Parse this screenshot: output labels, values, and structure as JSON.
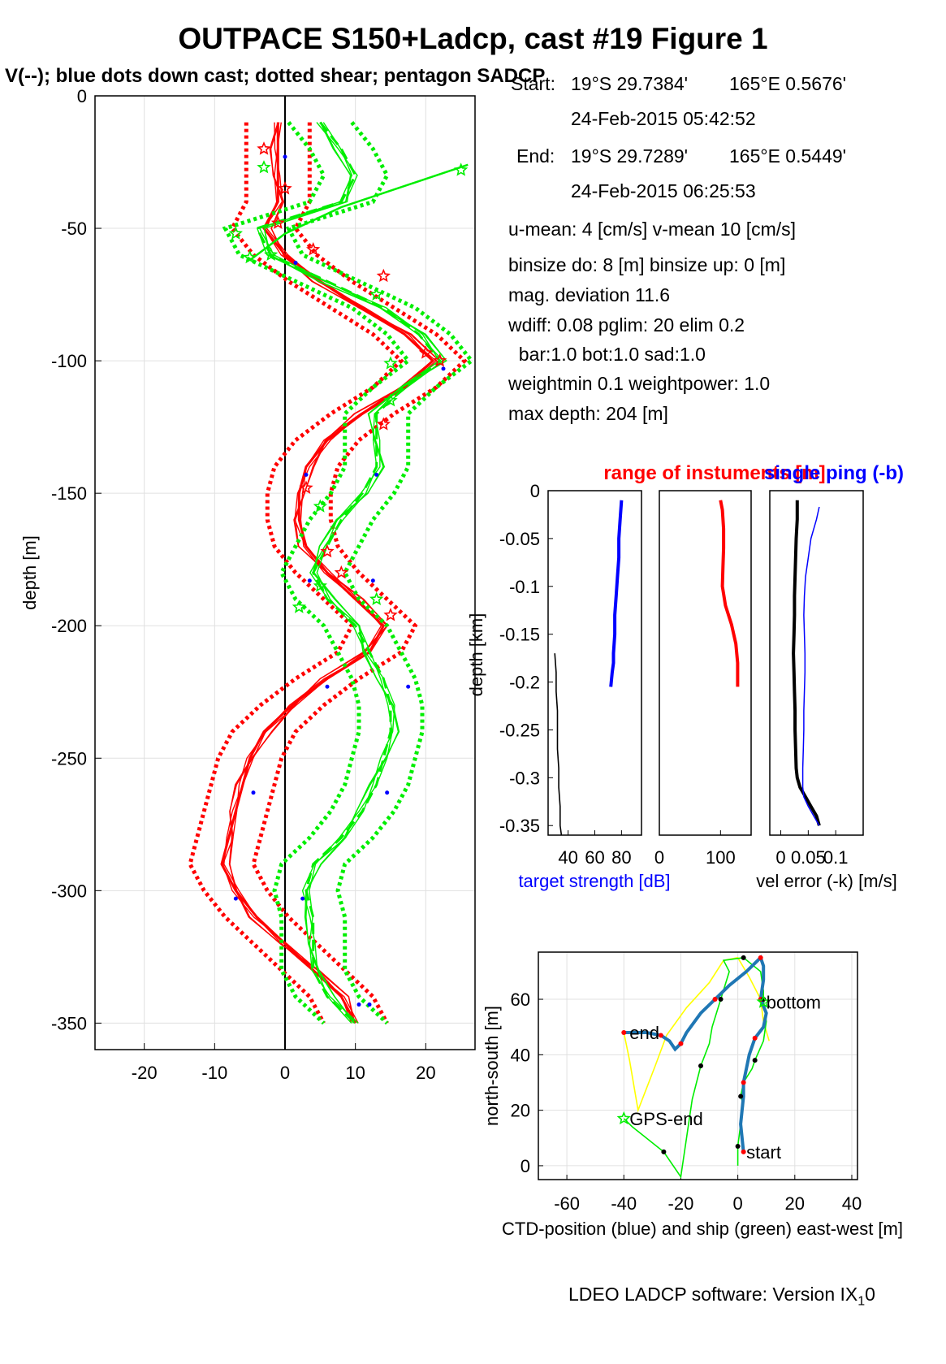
{
  "title": "OUTPACE S150+Ladcp, cast #19  Figure 1",
  "subtitle": "V(--); blue dots down cast; dotted shear; pentagon SADCP",
  "info": {
    "start_label": "Start:",
    "start_lat": "19°S 29.7384'",
    "start_lon": "165°E  0.5676'",
    "start_time": "24-Feb-2015 05:42:52",
    "end_label": "End:",
    "end_lat": "19°S 29.7289'",
    "end_lon": "165°E  0.5449'",
    "end_time": "24-Feb-2015 06:25:53",
    "umean": "u-mean:   4 [cm/s]    v-mean  10 [cm/s]",
    "binsize": "binsize do: 8 [m]  binsize up:  0 [m]",
    "magdev": "mag. deviation 11.6",
    "wdiff": "wdiff: 0.08  pglim: 20  elim 0.2",
    "bar": "  bar:1.0 bot:1.0 sad:1.0",
    "weight": "weightmin 0.1  weightpower: 1.0",
    "maxdepth": "max depth: 204 [m]"
  },
  "footer": "LDEO LADCP software: Version IX",
  "footer_sub": "1",
  "footer_end": "0",
  "colors": {
    "u": "#ff0000",
    "v": "#00ee00",
    "blue": "#0000ff",
    "ctd": "#1f77b4",
    "ship": "#ffff00",
    "black": "#000000"
  },
  "chart_data": [
    {
      "type": "line",
      "ylabel": "depth [m]",
      "xlim": [
        -27,
        27
      ],
      "ylim": [
        -360,
        0
      ],
      "xticks": [
        -20,
        -10,
        0,
        10,
        20
      ],
      "yticks": [
        0,
        -50,
        -100,
        -150,
        -200,
        -250,
        -300,
        -350
      ],
      "grid": true,
      "depth": [
        -10,
        -20,
        -30,
        -40,
        -50,
        -60,
        -70,
        -80,
        -90,
        -100,
        -110,
        -120,
        -130,
        -140,
        -150,
        -160,
        -170,
        -180,
        -190,
        -200,
        -210,
        -220,
        -230,
        -240,
        -250,
        -260,
        -270,
        -280,
        -290,
        -300,
        -310,
        -320,
        -330,
        -340,
        -350
      ],
      "series": [
        {
          "name": "u",
          "color": "#ff0000",
          "values": [
            -1,
            -1,
            -1,
            -1,
            -3,
            0,
            5,
            11,
            17,
            21,
            17,
            11,
            6,
            3,
            2,
            2,
            3,
            6,
            10,
            14,
            12,
            6,
            1,
            -3,
            -5,
            -6,
            -7,
            -8,
            -9,
            -7,
            -4,
            0,
            4,
            8,
            10
          ]
        },
        {
          "name": "v",
          "color": "#00ee00",
          "values": [
            5,
            8,
            10,
            8,
            -4,
            -2,
            6,
            14,
            19,
            22,
            17,
            13,
            13,
            13,
            11,
            8,
            6,
            4,
            6,
            10,
            12,
            14,
            15,
            15,
            14,
            13,
            11,
            8,
            4,
            3,
            4,
            4,
            4,
            6,
            10
          ]
        }
      ],
      "blue_dots": [
        [
          0,
          -23
        ],
        [
          1.5,
          -63
        ],
        [
          22.5,
          -103
        ],
        [
          3,
          -143
        ],
        [
          13,
          -143
        ],
        [
          3.5,
          -183
        ],
        [
          12.5,
          -183
        ],
        [
          6,
          -223
        ],
        [
          17.5,
          -223
        ],
        [
          -4.5,
          -263
        ],
        [
          14.5,
          -263
        ],
        [
          -7,
          -303
        ],
        [
          2.5,
          -303
        ],
        [
          10.5,
          -343
        ],
        [
          12,
          -343
        ]
      ],
      "sadcp_stars": [
        [
          -3,
          -20
        ],
        [
          -3,
          -27
        ],
        [
          0,
          -35
        ],
        [
          -1,
          -48
        ],
        [
          -2,
          -60
        ],
        [
          4,
          -58
        ],
        [
          14,
          -68
        ],
        [
          13,
          -75
        ],
        [
          20,
          -97
        ],
        [
          22,
          -100
        ],
        [
          15,
          -115
        ],
        [
          14,
          -124
        ],
        [
          3,
          -148
        ],
        [
          5,
          -155
        ],
        [
          6,
          -172
        ],
        [
          8,
          -180
        ],
        [
          13,
          -190
        ],
        [
          15,
          -196
        ],
        [
          25,
          -28
        ],
        [
          -7,
          -52
        ],
        [
          -5,
          -61
        ],
        [
          15,
          -101
        ],
        [
          5,
          -185
        ],
        [
          2,
          -193
        ]
      ]
    },
    {
      "type": "line",
      "title": "range of instuments [m]",
      "title2": "single ping (-b)",
      "ylabel": "depth [km]",
      "xlabel": "target strength [dB]",
      "xlabel2": "vel error (-k) [m/s]",
      "ylim": [
        -0.36,
        0
      ],
      "yticks": [
        0,
        -0.05,
        -0.1,
        -0.15,
        -0.2,
        -0.25,
        -0.3,
        -0.35
      ],
      "panels": [
        {
          "xticks": [
            40,
            60,
            80
          ],
          "xlim": [
            25,
            95
          ],
          "series": [
            {
              "color": "#0000ff",
              "x": [
                80,
                79,
                78,
                78,
                77,
                76,
                75,
                75,
                74,
                74,
                73,
                72
              ],
              "y": [
                -0.01,
                -0.03,
                -0.05,
                -0.07,
                -0.09,
                -0.11,
                -0.13,
                -0.15,
                -0.17,
                -0.18,
                -0.19,
                -0.205
              ]
            },
            {
              "color": "#000000",
              "x": [
                30,
                31,
                31,
                32,
                32,
                32,
                33,
                33,
                33,
                34,
                34,
                35
              ],
              "y": [
                -0.17,
                -0.19,
                -0.21,
                -0.23,
                -0.25,
                -0.27,
                -0.29,
                -0.3,
                -0.31,
                -0.33,
                -0.35,
                -0.36
              ]
            }
          ]
        },
        {
          "xticks": [
            0,
            100
          ],
          "xlim": [
            0,
            150
          ],
          "series": [
            {
              "color": "#ff0000",
              "x": [
                100,
                103,
                105,
                105,
                104,
                103,
                108,
                118,
                125,
                128,
                128,
                128
              ],
              "y": [
                -0.01,
                -0.02,
                -0.04,
                -0.06,
                -0.08,
                -0.1,
                -0.12,
                -0.14,
                -0.16,
                -0.18,
                -0.19,
                -0.205
              ]
            }
          ]
        },
        {
          "xticks": [
            0,
            0.05,
            0.1
          ],
          "xticklabels": [
            "0",
            "0.05",
            "0.1"
          ],
          "xlim": [
            -0.02,
            0.15
          ],
          "series": [
            {
              "color": "#000000",
              "x": [
                0.03,
                0.03,
                0.028,
                0.027,
                0.026,
                0.025,
                0.025,
                0.024,
                0.023,
                0.024,
                0.025,
                0.026,
                0.026,
                0.027,
                0.028,
                0.03,
                0.035,
                0.045,
                0.055,
                0.065,
                0.07
              ],
              "y": [
                -0.01,
                -0.03,
                -0.05,
                -0.07,
                -0.09,
                -0.11,
                -0.13,
                -0.15,
                -0.17,
                -0.19,
                -0.21,
                -0.23,
                -0.25,
                -0.27,
                -0.29,
                -0.3,
                -0.31,
                -0.32,
                -0.33,
                -0.34,
                -0.35
              ]
            },
            {
              "color": "#0000ff",
              "x": [
                0.07,
                0.065,
                0.055,
                0.05,
                0.045,
                0.043,
                0.042,
                0.043,
                0.044,
                0.044,
                0.043,
                0.042,
                0.042,
                0.041,
                0.04,
                0.04,
                0.04,
                0.042,
                0.05,
                0.06,
                0.07
              ],
              "y": [
                -0.017,
                -0.03,
                -0.05,
                -0.07,
                -0.09,
                -0.11,
                -0.13,
                -0.15,
                -0.17,
                -0.19,
                -0.21,
                -0.23,
                -0.25,
                -0.27,
                -0.29,
                -0.3,
                -0.31,
                -0.32,
                -0.33,
                -0.34,
                -0.35
              ]
            }
          ]
        }
      ]
    },
    {
      "type": "line",
      "xlabel": "CTD-position (blue) and ship (green) east-west [m]",
      "ylabel": "north-south [m]",
      "xlim": [
        -70,
        42
      ],
      "ylim": [
        -5,
        77
      ],
      "xticks": [
        -60,
        -40,
        -20,
        0,
        20,
        40
      ],
      "yticks": [
        0,
        20,
        40,
        60
      ],
      "labels": [
        {
          "text": "start",
          "x": 3,
          "y": 5
        },
        {
          "text": "end",
          "x": -38,
          "y": 48
        },
        {
          "text": "bottom",
          "x": 10,
          "y": 59
        },
        {
          "text": "GPS-end",
          "x": -38,
          "y": 17
        }
      ],
      "ctd": {
        "x": [
          2,
          1,
          2,
          2,
          3,
          4,
          6,
          9,
          10,
          8,
          9,
          9,
          8,
          3,
          -3,
          -8,
          -13,
          -18,
          -20,
          -22,
          -24,
          -27,
          -32,
          -35,
          -40
        ],
        "y": [
          5,
          15,
          25,
          30,
          35,
          40,
          46,
          50,
          55,
          60,
          67,
          72,
          75,
          70,
          65,
          60,
          55,
          48,
          44,
          42,
          45,
          47,
          48,
          48,
          48
        ]
      },
      "ship": {
        "x": [
          0,
          0,
          1,
          2,
          1,
          2,
          5,
          6,
          9,
          10,
          9,
          9,
          8,
          2,
          -5,
          -3,
          -6,
          -9,
          -10,
          -13,
          -16,
          -20,
          -26,
          -37,
          -40
        ],
        "y": [
          0,
          7,
          15,
          22,
          25,
          30,
          35,
          38,
          45,
          52,
          60,
          63,
          70,
          75,
          74,
          70,
          60,
          50,
          44,
          36,
          24,
          -4,
          5,
          14,
          17
        ]
      },
      "ship_seg": {
        "x": [
          -40,
          -38,
          -35,
          -29,
          -25,
          -18,
          -10,
          -5,
          0,
          4,
          8,
          9,
          11
        ],
        "y": [
          48,
          38,
          20,
          36,
          47,
          57,
          66,
          74,
          75,
          68,
          60,
          52,
          45
        ]
      }
    }
  ]
}
